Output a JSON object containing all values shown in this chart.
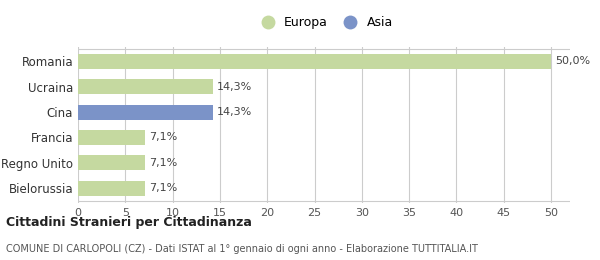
{
  "categories": [
    "Romania",
    "Ucraina",
    "Cina",
    "Francia",
    "Regno Unito",
    "Bielorussia"
  ],
  "values": [
    50.0,
    14.3,
    14.3,
    7.1,
    7.1,
    7.1
  ],
  "labels": [
    "50,0%",
    "14,3%",
    "14,3%",
    "7,1%",
    "7,1%",
    "7,1%"
  ],
  "colors": [
    "#c5d9a0",
    "#c5d9a0",
    "#7b93c8",
    "#c5d9a0",
    "#c5d9a0",
    "#c5d9a0"
  ],
  "xlim": [
    0,
    52
  ],
  "xticks": [
    0,
    5,
    10,
    15,
    20,
    25,
    30,
    35,
    40,
    45,
    50
  ],
  "legend_europa_color": "#c5d9a0",
  "legend_asia_color": "#7b93c8",
  "title": "Cittadini Stranieri per Cittadinanza",
  "subtitle": "COMUNE DI CARLOPOLI (CZ) - Dati ISTAT al 1° gennaio di ogni anno - Elaborazione TUTTITALIA.IT",
  "background_color": "#ffffff",
  "grid_color": "#cccccc",
  "bar_height": 0.6
}
